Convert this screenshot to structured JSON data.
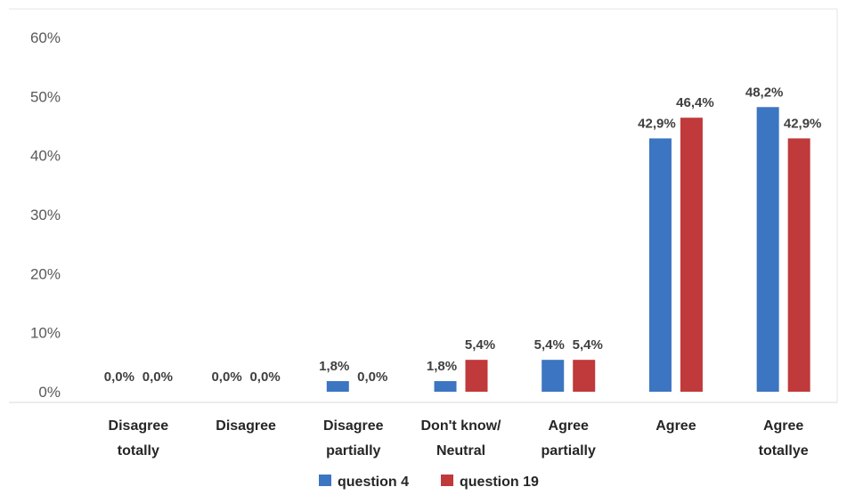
{
  "chart_data": {
    "type": "bar",
    "categories": [
      [
        "Disagree",
        "totally"
      ],
      [
        "Disagree"
      ],
      [
        "Disagree",
        "partially"
      ],
      [
        "Don't know/",
        "Neutral"
      ],
      [
        "Agree",
        "partially"
      ],
      [
        "Agree"
      ],
      [
        "Agree",
        "totallye"
      ]
    ],
    "series": [
      {
        "name": "question 4",
        "color": "#3c75c1",
        "values": [
          0.0,
          0.0,
          1.8,
          1.8,
          5.4,
          42.9,
          48.2
        ],
        "labels": [
          "0,0%",
          "0,0%",
          "1,8%",
          "1,8%",
          "5,4%",
          "42,9%",
          "48,2%"
        ]
      },
      {
        "name": "question  19",
        "color": "#c0393b",
        "values": [
          0.0,
          0.0,
          0.0,
          5.4,
          5.4,
          46.4,
          42.9
        ],
        "labels": [
          "0,0%",
          "0,0%",
          "0,0%",
          "5,4%",
          "5,4%",
          "46,4%",
          "42,9%"
        ]
      }
    ],
    "ylim": [
      0,
      60
    ],
    "yticks": [
      0,
      10,
      20,
      30,
      40,
      50,
      60
    ],
    "ytick_labels": [
      "0%",
      "10%",
      "20%",
      "30%",
      "40%",
      "50%",
      "60%"
    ],
    "title": "",
    "xlabel": "",
    "ylabel": "",
    "grid": false,
    "legend_position": "bottom-center"
  }
}
